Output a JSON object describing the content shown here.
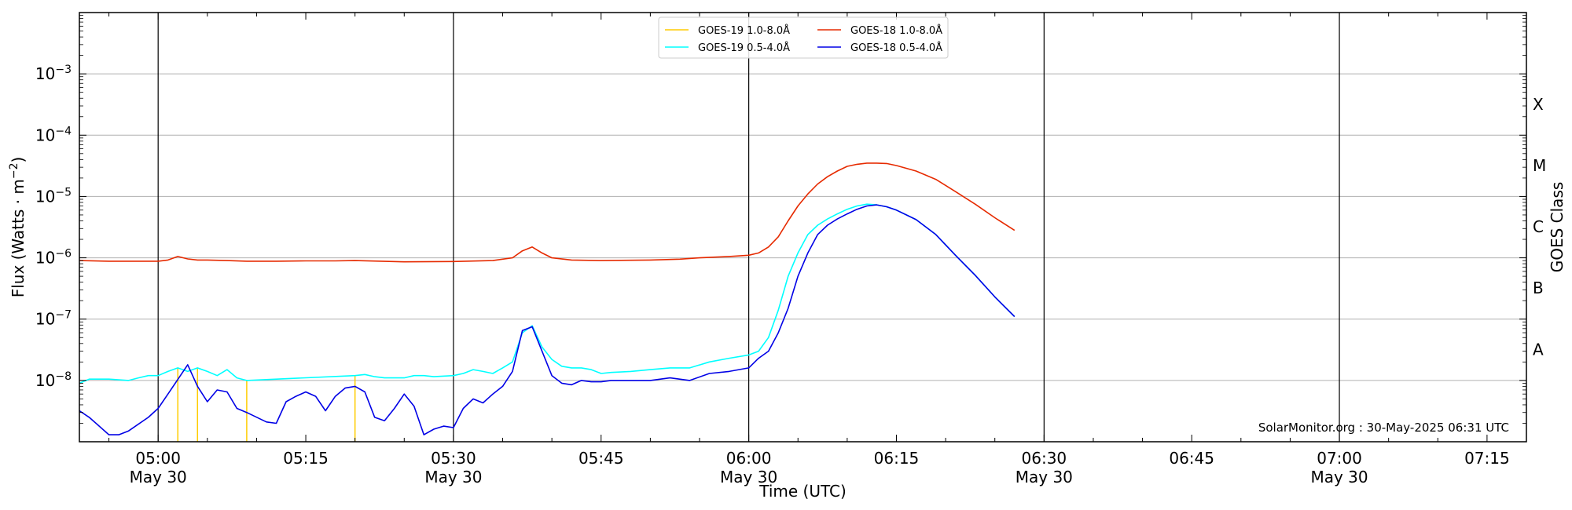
{
  "chart_data": {
    "type": "line",
    "xlabel": "Time (UTC)",
    "ylabel_parts": [
      "Flux (Watts · m",
      "−2",
      ")"
    ],
    "right_label": "GOES Class",
    "credit": "SolarMonitor.org : 30-May-2025 06:31 UTC",
    "x_start": "04:52",
    "x_end": "07:19",
    "y_scale": "log",
    "ylim": [
      1e-09,
      0.01
    ],
    "grid": "horizontal at each decade",
    "legend_position": "top-center",
    "x_ticks": [
      {
        "time": "05:00",
        "label": "05:00",
        "date": "May 30"
      },
      {
        "time": "05:15",
        "label": "05:15",
        "date": ""
      },
      {
        "time": "05:30",
        "label": "05:30",
        "date": "May 30"
      },
      {
        "time": "05:45",
        "label": "05:45",
        "date": ""
      },
      {
        "time": "06:00",
        "label": "06:00",
        "date": "May 30"
      },
      {
        "time": "06:15",
        "label": "06:15",
        "date": ""
      },
      {
        "time": "06:30",
        "label": "06:30",
        "date": "May 30"
      },
      {
        "time": "06:45",
        "label": "06:45",
        "date": ""
      },
      {
        "time": "07:00",
        "label": "07:00",
        "date": "May 30"
      },
      {
        "time": "07:15",
        "label": "07:15",
        "date": ""
      }
    ],
    "vertical_lines": [
      "05:00",
      "05:30",
      "06:00",
      "06:30",
      "07:00"
    ],
    "y_ticks": [
      {
        "value": 1e-08,
        "base": "10",
        "exp": "−8"
      },
      {
        "value": 1e-07,
        "base": "10",
        "exp": "−7"
      },
      {
        "value": 1e-06,
        "base": "10",
        "exp": "−6"
      },
      {
        "value": 1e-05,
        "base": "10",
        "exp": "−5"
      },
      {
        "value": 0.0001,
        "base": "10",
        "exp": "−4"
      },
      {
        "value": 0.001,
        "base": "10",
        "exp": "−3"
      }
    ],
    "goes_classes": [
      {
        "label": "A",
        "flux": 3.2e-08
      },
      {
        "label": "B",
        "flux": 3.2e-07
      },
      {
        "label": "C",
        "flux": 3.2e-06
      },
      {
        "label": "M",
        "flux": 3.2e-05
      },
      {
        "label": "X",
        "flux": 0.00032
      }
    ],
    "series": [
      {
        "name": "GOES-19 1.0-8.0Å",
        "color": "#ffcc00",
        "x": [
          "05:02",
          "05:04",
          "05:09",
          "05:20"
        ],
        "y": [
          [
            1e-09,
            1.6e-08
          ],
          [
            1e-09,
            1.6e-08
          ],
          [
            1e-09,
            1e-08
          ],
          [
            1e-09,
            1.2e-08
          ]
        ],
        "style": "spikes"
      },
      {
        "name": "GOES-18 1.0-8.0Å",
        "color": "#e62a00",
        "x": [
          "04:52",
          "04:55",
          "04:58",
          "05:00",
          "05:01",
          "05:02",
          "05:03",
          "05:04",
          "05:05",
          "05:07",
          "05:09",
          "05:12",
          "05:15",
          "05:18",
          "05:20",
          "05:25",
          "05:30",
          "05:34",
          "05:36",
          "05:37",
          "05:38",
          "05:39",
          "05:40",
          "05:42",
          "05:45",
          "05:50",
          "05:53",
          "05:55",
          "05:58",
          "06:00",
          "06:01",
          "06:02",
          "06:03",
          "06:04",
          "06:05",
          "06:06",
          "06:07",
          "06:08",
          "06:09",
          "06:10",
          "06:11",
          "06:12",
          "06:13",
          "06:14",
          "06:15",
          "06:17",
          "06:19",
          "06:21",
          "06:23",
          "06:25",
          "06:27"
        ],
        "y": [
          9e-07,
          8.8e-07,
          8.8e-07,
          8.8e-07,
          9.2e-07,
          1.05e-06,
          9.6e-07,
          9.2e-07,
          9.2e-07,
          9e-07,
          8.8e-07,
          8.8e-07,
          8.9e-07,
          8.9e-07,
          9e-07,
          8.6e-07,
          8.7e-07,
          9e-07,
          1e-06,
          1.3e-06,
          1.5e-06,
          1.2e-06,
          1e-06,
          9.2e-07,
          9e-07,
          9.2e-07,
          9.5e-07,
          1e-06,
          1.05e-06,
          1.1e-06,
          1.2e-06,
          1.5e-06,
          2.2e-06,
          4e-06,
          7e-06,
          1.1e-05,
          1.6e-05,
          2.1e-05,
          2.6e-05,
          3.1e-05,
          3.35e-05,
          3.5e-05,
          3.5e-05,
          3.45e-05,
          3.2e-05,
          2.6e-05,
          1.9e-05,
          1.2e-05,
          7.5e-06,
          4.5e-06,
          2.8e-06
        ]
      },
      {
        "name": "GOES-19 0.5-4.0Å",
        "color": "#00ffff",
        "x": [
          "04:52",
          "04:53",
          "04:55",
          "04:57",
          "04:58",
          "04:59",
          "05:00",
          "05:01",
          "05:02",
          "05:03",
          "05:04",
          "05:05",
          "05:06",
          "05:07",
          "05:08",
          "05:09",
          "05:20",
          "05:21",
          "05:22",
          "05:23",
          "05:25",
          "05:26",
          "05:27",
          "05:28",
          "05:30",
          "05:31",
          "05:32",
          "05:33",
          "05:34",
          "05:35",
          "05:36",
          "05:37",
          "05:38",
          "05:39",
          "05:40",
          "05:41",
          "05:42",
          "05:43",
          "05:44",
          "05:45",
          "05:46",
          "05:48",
          "05:50",
          "05:52",
          "05:54",
          "05:56",
          "05:58",
          "06:00",
          "06:01",
          "06:02",
          "06:03",
          "06:04",
          "06:05",
          "06:06",
          "06:07",
          "06:08",
          "06:09",
          "06:10",
          "06:11",
          "06:12",
          "06:13",
          "06:14",
          "06:15",
          "06:17",
          "06:19",
          "06:21",
          "06:23",
          "06:25",
          "06:27"
        ],
        "y": [
          9e-09,
          1.05e-08,
          1.05e-08,
          1e-08,
          1.1e-08,
          1.2e-08,
          1.2e-08,
          1.4e-08,
          1.6e-08,
          1.4e-08,
          1.6e-08,
          1.4e-08,
          1.2e-08,
          1.5e-08,
          1.1e-08,
          1e-08,
          1.2e-08,
          1.25e-08,
          1.15e-08,
          1.1e-08,
          1.1e-08,
          1.2e-08,
          1.2e-08,
          1.15e-08,
          1.2e-08,
          1.3e-08,
          1.5e-08,
          1.4e-08,
          1.3e-08,
          1.6e-08,
          2e-08,
          6e-08,
          7.8e-08,
          3.5e-08,
          2.2e-08,
          1.7e-08,
          1.6e-08,
          1.6e-08,
          1.5e-08,
          1.3e-08,
          1.35e-08,
          1.4e-08,
          1.5e-08,
          1.6e-08,
          1.6e-08,
          2e-08,
          2.3e-08,
          2.6e-08,
          3e-08,
          5e-08,
          1.4e-07,
          5e-07,
          1.2e-06,
          2.4e-06,
          3.4e-06,
          4.3e-06,
          5.2e-06,
          6.2e-06,
          7e-06,
          7.5e-06,
          7.3e-06,
          6.8e-06,
          6e-06,
          4.2e-06,
          2.4e-06,
          1.1e-06,
          5.2e-07,
          2.3e-07,
          1.1e-07
        ]
      },
      {
        "name": "GOES-18 0.5-4.0Å",
        "color": "#0000e6",
        "x": [
          "04:52",
          "04:53",
          "04:55",
          "04:56",
          "04:57",
          "04:59",
          "05:00",
          "05:01",
          "05:03",
          "05:04",
          "05:05",
          "05:06",
          "05:07",
          "05:08",
          "05:09",
          "05:11",
          "05:12",
          "05:13",
          "05:14",
          "05:15",
          "05:16",
          "05:17",
          "05:18",
          "05:19",
          "05:20",
          "05:21",
          "05:22",
          "05:23",
          "05:24",
          "05:25",
          "05:26",
          "05:27",
          "05:28",
          "05:29",
          "05:30",
          "05:31",
          "05:32",
          "05:33",
          "05:34",
          "05:35",
          "05:36",
          "05:37",
          "05:38",
          "05:39",
          "05:40",
          "05:41",
          "05:42",
          "05:43",
          "05:44",
          "05:45",
          "05:46",
          "05:48",
          "05:50",
          "05:52",
          "05:54",
          "05:56",
          "05:58",
          "06:00",
          "06:01",
          "06:02",
          "06:03",
          "06:04",
          "06:05",
          "06:06",
          "06:07",
          "06:08",
          "06:09",
          "06:10",
          "06:11",
          "06:12",
          "06:13",
          "06:14",
          "06:15",
          "06:17",
          "06:19",
          "06:21",
          "06:23",
          "06:25",
          "06:27"
        ],
        "y": [
          3.2e-09,
          2.5e-09,
          1.3e-09,
          1.3e-09,
          1.5e-09,
          2.5e-09,
          3.5e-09,
          6e-09,
          1.8e-08,
          8e-09,
          4.5e-09,
          7e-09,
          6.5e-09,
          3.5e-09,
          3e-09,
          2.1e-09,
          2e-09,
          4.5e-09,
          5.5e-09,
          6.5e-09,
          5.5e-09,
          3.2e-09,
          5.5e-09,
          7.5e-09,
          8e-09,
          6.5e-09,
          2.5e-09,
          2.2e-09,
          3.5e-09,
          6e-09,
          3.8e-09,
          1.3e-09,
          1.6e-09,
          1.8e-09,
          1.7e-09,
          3.5e-09,
          5e-09,
          4.3e-09,
          6e-09,
          8e-09,
          1.4e-08,
          6.5e-08,
          7.5e-08,
          3e-08,
          1.2e-08,
          9e-09,
          8.5e-09,
          1e-08,
          9.5e-09,
          9.5e-09,
          1e-08,
          1e-08,
          1e-08,
          1.1e-08,
          1e-08,
          1.3e-08,
          1.4e-08,
          1.6e-08,
          2.3e-08,
          3e-08,
          6e-08,
          1.5e-07,
          5e-07,
          1.2e-06,
          2.4e-06,
          3.4e-06,
          4.3e-06,
          5.2e-06,
          6.2e-06,
          7e-06,
          7.3e-06,
          6.8e-06,
          6e-06,
          4.2e-06,
          2.4e-06,
          1.1e-06,
          5.2e-07,
          2.3e-07,
          1.1e-07
        ]
      }
    ],
    "legend_order": [
      0,
      2,
      1,
      3
    ]
  }
}
